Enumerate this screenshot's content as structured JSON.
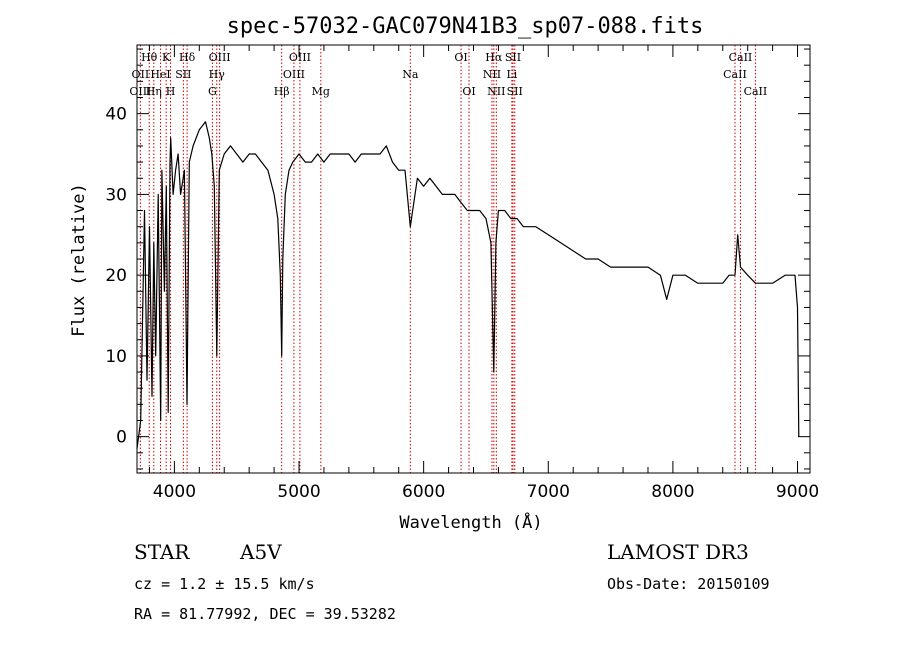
{
  "chart_data": {
    "type": "line",
    "title": "spec-57032-GAC079N41B3_sp07-088.fits",
    "xlabel": "Wavelength (Å)",
    "ylabel": "Flux (relative)",
    "xlim": [
      3700,
      9100
    ],
    "ylim": [
      -4.5,
      48.5
    ],
    "x_ticks": [
      4000,
      5000,
      6000,
      7000,
      8000,
      9000
    ],
    "y_ticks": [
      0,
      10,
      20,
      30,
      40
    ],
    "grid": false,
    "series": [
      {
        "x": [
          3700,
          3730,
          3760,
          3780,
          3800,
          3820,
          3835,
          3850,
          3870,
          3890,
          3900,
          3920,
          3935,
          3950,
          3965,
          3970,
          3990,
          4010,
          4030,
          4050,
          4080,
          4101,
          4120,
          4150,
          4200,
          4250,
          4280,
          4300,
          4320,
          4340,
          4360,
          4400,
          4450,
          4500,
          4550,
          4600,
          4650,
          4700,
          4750,
          4800,
          4830,
          4850,
          4861,
          4870,
          4890,
          4920,
          4950,
          5000,
          5050,
          5100,
          5150,
          5200,
          5250,
          5300,
          5350,
          5400,
          5450,
          5500,
          5550,
          5600,
          5650,
          5700,
          5750,
          5800,
          5850,
          5893,
          5950,
          6000,
          6050,
          6100,
          6150,
          6200,
          6250,
          6300,
          6350,
          6400,
          6450,
          6500,
          6540,
          6563,
          6580,
          6600,
          6650,
          6700,
          6750,
          6800,
          6900,
          7000,
          7100,
          7200,
          7300,
          7400,
          7500,
          7600,
          7700,
          7800,
          7900,
          7950,
          8000,
          8100,
          8200,
          8300,
          8400,
          8450,
          8498,
          8520,
          8542,
          8600,
          8662,
          8700,
          8800,
          8900,
          8980,
          9000,
          9010
        ],
        "y": [
          -1.5,
          2,
          28,
          7,
          26,
          5,
          24,
          10,
          30,
          2,
          33,
          18,
          31,
          3,
          34,
          37,
          30,
          33,
          35,
          30,
          33,
          4,
          34,
          36,
          38,
          39,
          37,
          35,
          31,
          10,
          33,
          35,
          36,
          35,
          34,
          35,
          35,
          34,
          33,
          30,
          27,
          20,
          10,
          22,
          30,
          33,
          34,
          35,
          34,
          34,
          35,
          34,
          35,
          35,
          35,
          35,
          34,
          35,
          35,
          35,
          35,
          36,
          34,
          33,
          33,
          26,
          32,
          31,
          32,
          31,
          30,
          30,
          30,
          29,
          28,
          28,
          28,
          27,
          24,
          8,
          24,
          28,
          28,
          27,
          27,
          26,
          26,
          25,
          24,
          23,
          22,
          22,
          21,
          21,
          21,
          21,
          20,
          17,
          20,
          20,
          19,
          19,
          19,
          20,
          20,
          25,
          21,
          20,
          19,
          19,
          19,
          20,
          20,
          16,
          0
        ]
      }
    ],
    "spectral_lines": [
      {
        "label": "Hθ",
        "wave": 3798,
        "row": 0
      },
      {
        "label": "OII",
        "wave": 3727,
        "row": 1
      },
      {
        "label": "OIII",
        "wave": 3727,
        "row": 2
      },
      {
        "label": "Hη",
        "wave": 3835,
        "row": 2
      },
      {
        "label": "K",
        "wave": 3934,
        "row": 0
      },
      {
        "label": "HeI",
        "wave": 3889,
        "row": 1
      },
      {
        "label": "H",
        "wave": 3969,
        "row": 2
      },
      {
        "label": "SII",
        "wave": 4072,
        "row": 1
      },
      {
        "label": "Hδ",
        "wave": 4102,
        "row": 0
      },
      {
        "label": "OIII",
        "wave": 4363,
        "row": 0
      },
      {
        "label": "Hγ",
        "wave": 4340,
        "row": 1
      },
      {
        "label": "G",
        "wave": 4305,
        "row": 2
      },
      {
        "label": "Hβ",
        "wave": 4861,
        "row": 2
      },
      {
        "label": "OIII",
        "wave": 5007,
        "row": 0
      },
      {
        "label": "OIII",
        "wave": 4959,
        "row": 1
      },
      {
        "label": "Mg",
        "wave": 5175,
        "row": 2
      },
      {
        "label": "Na",
        "wave": 5893,
        "row": 1
      },
      {
        "label": "OI",
        "wave": 6300,
        "row": 0
      },
      {
        "label": "OI",
        "wave": 6364,
        "row": 2
      },
      {
        "label": "Hα",
        "wave": 6563,
        "row": 0
      },
      {
        "label": "NII",
        "wave": 6548,
        "row": 1
      },
      {
        "label": "NII",
        "wave": 6583,
        "row": 2
      },
      {
        "label": "SII",
        "wave": 6717,
        "row": 0
      },
      {
        "label": "Li",
        "wave": 6708,
        "row": 1
      },
      {
        "label": "SII",
        "wave": 6731,
        "row": 2
      },
      {
        "label": "CaII",
        "wave": 8542,
        "row": 0
      },
      {
        "label": "CaII",
        "wave": 8498,
        "row": 1
      },
      {
        "label": "CaII",
        "wave": 8662,
        "row": 2
      }
    ],
    "marker_waves": [
      3727,
      3798,
      3835,
      3889,
      3934,
      3969,
      4072,
      4102,
      4305,
      4340,
      4363,
      4861,
      4959,
      5007,
      5175,
      5893,
      6300,
      6364,
      6548,
      6563,
      6583,
      6708,
      6717,
      6731,
      8498,
      8542,
      8662
    ],
    "line_color": "#000000",
    "marker_color": "#cc0000"
  },
  "info": {
    "class": "STAR",
    "subclass": "A5V",
    "survey": "LAMOST DR3",
    "cz": "cz = 1.2 ± 15.5 km/s",
    "obs_date": "Obs-Date: 20150109",
    "coords": "RA =  81.77992, DEC =  39.53282"
  }
}
